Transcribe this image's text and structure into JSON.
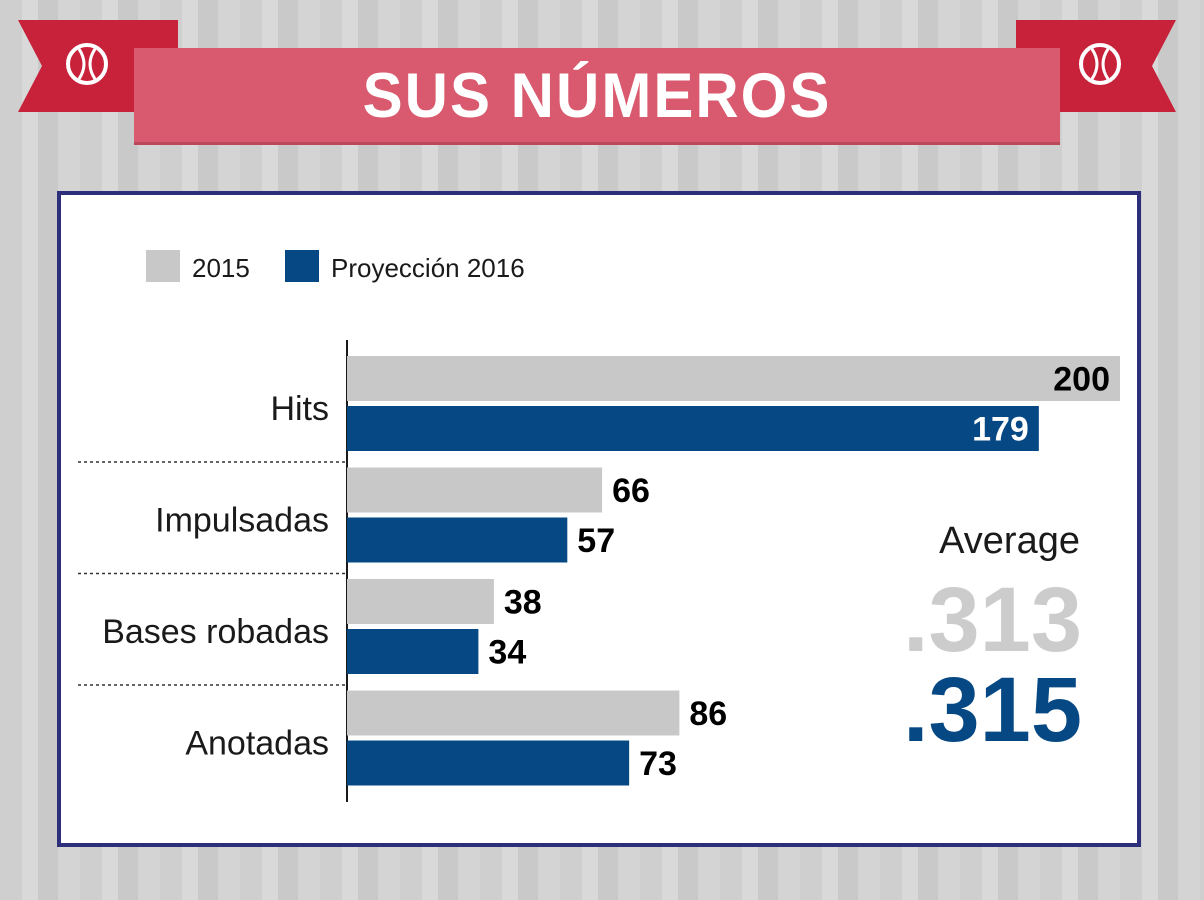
{
  "header": {
    "title": "SUS NÚMEROS"
  },
  "icons": {
    "left": "baseball-icon",
    "right": "baseball-icon"
  },
  "colors": {
    "series_2015": "#c8c8c8",
    "series_2016": "#064883",
    "banner": "#d95a6e",
    "ribbon": "#c8213a",
    "frame": "#2e2f7a"
  },
  "average": {
    "label": "Average",
    "value_2015": ".313",
    "value_2016": ".315"
  },
  "chart_data": {
    "type": "bar",
    "orientation": "horizontal",
    "categories": [
      "Hits",
      "Impulsadas",
      "Bases robadas",
      "Anotadas"
    ],
    "series": [
      {
        "name": "2015",
        "values": [
          200,
          66,
          38,
          86
        ]
      },
      {
        "name": "Proyección 2016",
        "values": [
          179,
          57,
          34,
          73
        ]
      }
    ],
    "xlim": [
      0,
      200
    ],
    "legend_position": "top-left",
    "grid": false,
    "data_labels": true
  }
}
